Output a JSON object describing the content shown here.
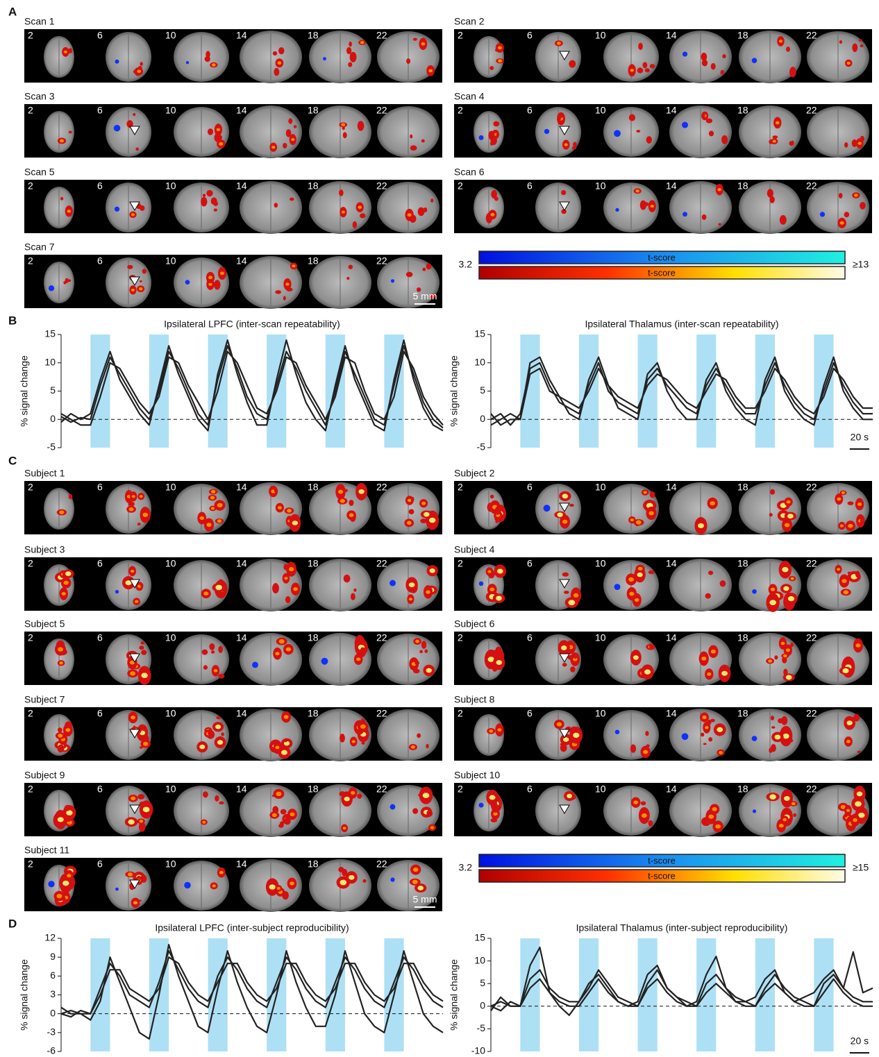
{
  "panel_labels": [
    "A",
    "B",
    "C",
    "D"
  ],
  "slices": [
    "2",
    "6",
    "10",
    "14",
    "18",
    "22"
  ],
  "scan_maps": {
    "labels": [
      "Scan 1",
      "Scan 2",
      "Scan 3",
      "Scan 4",
      "Scan 5",
      "Scan 6",
      "Scan 7"
    ],
    "colorbar": {
      "min_label": "3.2",
      "max_label": "≥13",
      "bar_label": "t-score"
    },
    "scale_bar": "5 mm"
  },
  "subject_maps": {
    "labels": [
      "Subject 1",
      "Subject 2",
      "Subject 3",
      "Subject 4",
      "Subject 5",
      "Subject 6",
      "Subject 7",
      "Subject 8",
      "Subject 9",
      "Subject 10",
      "Subject 11"
    ],
    "colorbar": {
      "min_label": "3.2",
      "max_label": "≥15",
      "bar_label": "t-score"
    },
    "scale_bar": "5 mm"
  },
  "chart_data": [
    {
      "type": "line",
      "title": "Ipsilateral LPFC (inter-scan repeatability)",
      "y_label": "% signal change",
      "xlim": [
        0,
        390
      ],
      "ylim": [
        -5,
        15
      ],
      "yticks": [
        -5,
        0,
        5,
        10,
        15
      ],
      "baseline_dashed": true,
      "stimulus_blocks": [
        [
          30,
          50
        ],
        [
          90,
          110
        ],
        [
          150,
          170
        ],
        [
          210,
          230
        ],
        [
          270,
          290
        ],
        [
          330,
          350
        ]
      ],
      "block_color": "#aee0f5",
      "x": [
        0,
        10,
        20,
        30,
        40,
        50,
        60,
        70,
        80,
        90,
        100,
        110,
        120,
        130,
        140,
        150,
        160,
        170,
        180,
        190,
        200,
        210,
        220,
        230,
        240,
        250,
        260,
        270,
        280,
        290,
        300,
        310,
        320,
        330,
        340,
        350,
        360,
        370,
        380,
        390
      ],
      "series": [
        {
          "color": "#222222",
          "values": [
            0.5,
            -0.5,
            0.3,
            0,
            6,
            11,
            8,
            5,
            2,
            0,
            5,
            12,
            9,
            5,
            1,
            -1,
            7,
            13,
            9,
            4,
            1,
            0,
            6,
            12,
            9,
            5,
            2,
            -1,
            5,
            12,
            8,
            4,
            0,
            -1,
            6,
            13,
            8,
            3,
            0,
            -1.5
          ]
        },
        {
          "color": "#222222",
          "values": [
            1,
            0,
            -1,
            -1,
            4,
            10,
            9,
            6,
            3,
            1,
            4,
            11,
            10,
            6,
            3,
            0,
            5,
            12,
            10,
            6,
            2,
            1,
            5,
            11,
            10,
            6,
            3,
            0,
            4,
            11,
            10,
            5,
            1,
            0,
            4,
            12,
            9,
            4,
            1,
            -1
          ]
        },
        {
          "color": "#222222",
          "values": [
            -0.5,
            1,
            0,
            1,
            7,
            12,
            7,
            4,
            1,
            -1,
            6,
            13,
            8,
            4,
            0,
            -2,
            8,
            14,
            8,
            3,
            -1,
            -1,
            7,
            14,
            8,
            3,
            0,
            -2,
            6,
            13,
            7,
            3,
            -1,
            -2,
            7,
            14,
            7,
            2,
            -1,
            -2
          ]
        }
      ]
    },
    {
      "type": "line",
      "title": "Ipsilateral Thalamus (inter-scan repeatability)",
      "y_label": "% signal change",
      "xlim": [
        0,
        390
      ],
      "ylim": [
        -5,
        15
      ],
      "yticks": [
        -5,
        0,
        5,
        10,
        15
      ],
      "baseline_dashed": true,
      "stimulus_blocks": [
        [
          30,
          50
        ],
        [
          90,
          110
        ],
        [
          150,
          170
        ],
        [
          210,
          230
        ],
        [
          270,
          290
        ],
        [
          330,
          350
        ]
      ],
      "block_color": "#aee0f5",
      "scale_bar": {
        "value": 20,
        "label": "20 s"
      },
      "x": [
        0,
        10,
        20,
        30,
        40,
        50,
        60,
        70,
        80,
        90,
        100,
        110,
        120,
        130,
        140,
        150,
        160,
        170,
        180,
        190,
        200,
        210,
        220,
        230,
        240,
        250,
        260,
        270,
        280,
        290,
        300,
        310,
        320,
        330,
        340,
        350,
        360,
        370,
        380,
        390
      ],
      "series": [
        {
          "color": "#222222",
          "values": [
            0,
            1,
            -1,
            1,
            9,
            10,
            6,
            3,
            2,
            1,
            6,
            10,
            5,
            3,
            2,
            1,
            7,
            9,
            6,
            4,
            2,
            1,
            6,
            9,
            6,
            3,
            1,
            1,
            6,
            10,
            6,
            3,
            1,
            0,
            5,
            10,
            6,
            3,
            1,
            1
          ]
        },
        {
          "color": "#222222",
          "values": [
            -1,
            0,
            1,
            0,
            10,
            11,
            7,
            4,
            1,
            0,
            7,
            11,
            6,
            2,
            1,
            0,
            8,
            10,
            5,
            2,
            0,
            0,
            7,
            10,
            5,
            2,
            0,
            -1,
            7,
            11,
            5,
            2,
            0,
            -1,
            6,
            11,
            5,
            2,
            0,
            0
          ]
        },
        {
          "color": "#222222",
          "values": [
            1,
            -1,
            0,
            0,
            8,
            9,
            5,
            4,
            3,
            2,
            5,
            9,
            6,
            4,
            3,
            2,
            6,
            8,
            7,
            5,
            3,
            2,
            5,
            8,
            7,
            4,
            2,
            2,
            5,
            9,
            7,
            4,
            2,
            1,
            4,
            9,
            7,
            4,
            2,
            2
          ]
        }
      ]
    },
    {
      "type": "line",
      "title": "Ipsilateral LPFC (inter-subject reproducibility)",
      "y_label": "% signal change",
      "xlim": [
        0,
        390
      ],
      "ylim": [
        -6,
        12
      ],
      "yticks": [
        -6,
        -3,
        0,
        3,
        6,
        9,
        12
      ],
      "baseline_dashed": true,
      "stimulus_blocks": [
        [
          30,
          50
        ],
        [
          90,
          110
        ],
        [
          150,
          170
        ],
        [
          210,
          230
        ],
        [
          270,
          290
        ],
        [
          330,
          350
        ]
      ],
      "block_color": "#aee0f5",
      "x": [
        0,
        10,
        20,
        30,
        40,
        50,
        60,
        70,
        80,
        90,
        100,
        110,
        120,
        130,
        140,
        150,
        160,
        170,
        180,
        190,
        200,
        210,
        220,
        230,
        240,
        250,
        260,
        270,
        280,
        290,
        300,
        310,
        320,
        330,
        340,
        350,
        360,
        370,
        380,
        390
      ],
      "series": [
        {
          "color": "#222222",
          "values": [
            0,
            0.5,
            0,
            0,
            4,
            8,
            6,
            3,
            2,
            1,
            5,
            10,
            7,
            4,
            2,
            1,
            6,
            9,
            7,
            4,
            2,
            1,
            5,
            9,
            7,
            4,
            2,
            1,
            5,
            9,
            7,
            4,
            2,
            1,
            5,
            9,
            7,
            4,
            2,
            1
          ]
        },
        {
          "color": "#222222",
          "values": [
            0,
            -0.5,
            0.5,
            0,
            3,
            7,
            7,
            4,
            3,
            2,
            4,
            9,
            8,
            5,
            3,
            2,
            5,
            8,
            8,
            5,
            3,
            2,
            4,
            8,
            8,
            5,
            3,
            2,
            4,
            8,
            8,
            5,
            3,
            2,
            4,
            8,
            8,
            5,
            3,
            2
          ]
        },
        {
          "color": "#222222",
          "values": [
            1,
            0,
            0,
            -1,
            2,
            9,
            5,
            1,
            -3,
            -4,
            3,
            11,
            6,
            2,
            -2,
            -3,
            4,
            10,
            5,
            1,
            -2,
            -3,
            3,
            10,
            5,
            1,
            -2,
            -2,
            3,
            10,
            5,
            0,
            -2,
            -3,
            3,
            10,
            5,
            0,
            -2,
            -3
          ]
        }
      ]
    },
    {
      "type": "line",
      "title": "Ipsilateral Thalamus (inter-subject reproducibility)",
      "y_label": "% signal change",
      "xlim": [
        0,
        390
      ],
      "ylim": [
        -10,
        15
      ],
      "yticks": [
        -10,
        -5,
        0,
        5,
        10,
        15
      ],
      "baseline_dashed": true,
      "stimulus_blocks": [
        [
          30,
          50
        ],
        [
          90,
          110
        ],
        [
          150,
          170
        ],
        [
          210,
          230
        ],
        [
          270,
          290
        ],
        [
          330,
          350
        ]
      ],
      "block_color": "#aee0f5",
      "scale_bar": {
        "value": 20,
        "label": "20 s"
      },
      "x": [
        0,
        10,
        20,
        30,
        40,
        50,
        60,
        70,
        80,
        90,
        100,
        110,
        120,
        130,
        140,
        150,
        160,
        170,
        180,
        190,
        200,
        210,
        220,
        230,
        240,
        250,
        260,
        270,
        280,
        290,
        300,
        310,
        320,
        330,
        340,
        350,
        360,
        370,
        380,
        390
      ],
      "series": [
        {
          "color": "#222222",
          "values": [
            0,
            1,
            0,
            0,
            6,
            8,
            4,
            2,
            1,
            1,
            4,
            8,
            5,
            2,
            1,
            0,
            5,
            8,
            4,
            2,
            1,
            0,
            5,
            7,
            4,
            2,
            1,
            0,
            4,
            7,
            4,
            2,
            1,
            0,
            5,
            7,
            4,
            2,
            1,
            1
          ]
        },
        {
          "color": "#222222",
          "values": [
            0,
            -1,
            1,
            0,
            4,
            6,
            3,
            1,
            0,
            0,
            3,
            6,
            3,
            1,
            0,
            0,
            4,
            6,
            3,
            1,
            0,
            0,
            3,
            5,
            3,
            1,
            0,
            0,
            3,
            5,
            3,
            1,
            0,
            0,
            3,
            6,
            3,
            1,
            0,
            0
          ]
        },
        {
          "color": "#222222",
          "values": [
            -1,
            2,
            0,
            0,
            9,
            13,
            3,
            0,
            -2,
            1,
            5,
            7,
            4,
            1,
            0,
            1,
            7,
            9,
            4,
            2,
            0,
            1,
            7,
            11,
            4,
            1,
            1,
            2,
            6,
            8,
            3,
            1,
            2,
            3,
            6,
            8,
            4,
            12,
            3,
            4
          ]
        }
      ]
    }
  ]
}
